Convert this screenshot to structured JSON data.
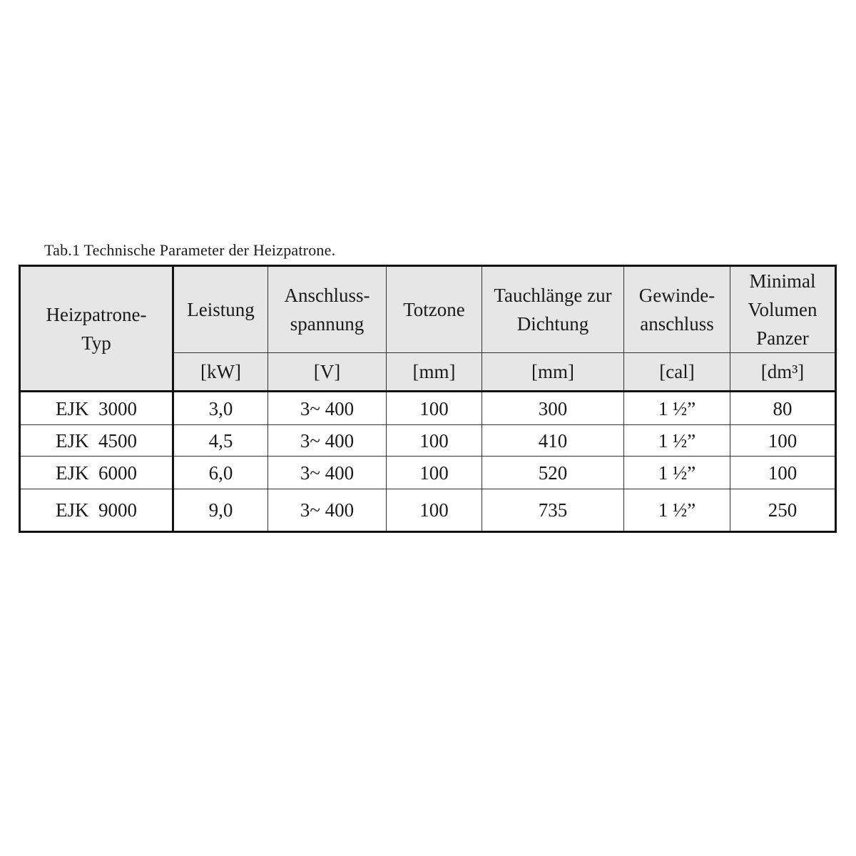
{
  "caption": "Tab.1 Technische Parameter der Heizpatrone.",
  "table": {
    "headers": [
      "Heizpatrone-\nTyp",
      "Leistung",
      "Anschluss-\nspannung",
      "Totzone",
      "Tauchlänge zur\nDichtung",
      "Gewinde-\nanschluss",
      "Minimal\nVolumen\nPanzer"
    ],
    "units": [
      "[kW]",
      "[V]",
      "[mm]",
      "[mm]",
      "[cal]",
      "[dm³]"
    ],
    "rows": [
      [
        "EJK  3000",
        "3,0",
        "3~ 400",
        "100",
        "300",
        "1 ½”",
        "80"
      ],
      [
        "EJK  4500",
        "4,5",
        "3~ 400",
        "100",
        "410",
        "1 ½”",
        "100"
      ],
      [
        "EJK  6000",
        "6,0",
        "3~ 400",
        "100",
        "520",
        "1 ½”",
        "100"
      ],
      [
        "EJK  9000",
        "9,0",
        "3~ 400",
        "100",
        "735",
        "1 ½”",
        "250"
      ]
    ]
  }
}
